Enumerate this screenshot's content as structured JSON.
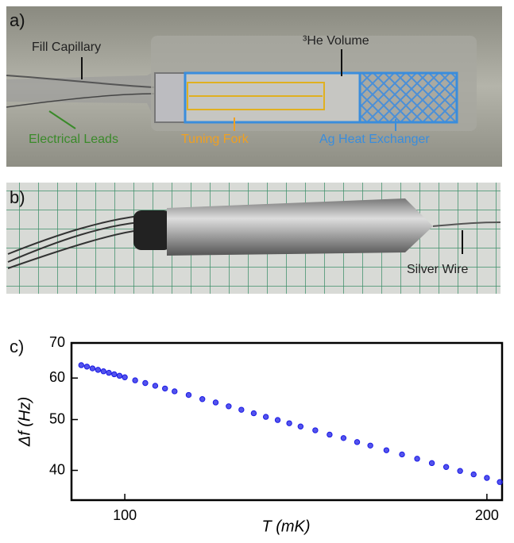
{
  "panels": [
    {
      "label": "a)",
      "annotations": [
        "Fill Capillary",
        "³He Volume",
        "Electrical Leads",
        "Tuning Fork",
        "Ag Heat Exchanger"
      ]
    },
    {
      "label": "b)",
      "annotations": [
        "Silver Wire"
      ]
    },
    {
      "label": "c)"
    }
  ],
  "chart_data": {
    "type": "scatter",
    "xlabel": "T (mK)",
    "ylabel": "Δf (Hz)",
    "x": [
      92,
      93,
      94,
      95,
      96,
      97,
      98,
      99,
      100,
      102,
      104,
      106,
      108,
      110,
      113,
      116,
      119,
      122,
      125,
      128,
      131,
      134,
      137,
      140,
      144,
      148,
      152,
      156,
      160,
      165,
      170,
      175,
      180,
      185,
      190,
      195,
      200,
      205
    ],
    "values": [
      63.5,
      63.1,
      62.6,
      62.2,
      61.8,
      61.4,
      61.0,
      60.6,
      60.2,
      59.4,
      58.7,
      58.0,
      57.3,
      56.6,
      55.7,
      54.7,
      53.9,
      53.0,
      52.2,
      51.4,
      50.6,
      49.9,
      49.2,
      48.5,
      47.7,
      46.8,
      46.1,
      45.3,
      44.6,
      43.7,
      42.9,
      42.1,
      41.3,
      40.6,
      39.9,
      39.3,
      38.7,
      38.0
    ],
    "color": "#1a1ae6",
    "xscale": "log",
    "yscale": "log",
    "xlim": [
      90.3,
      205.9
    ],
    "ylim": [
      35.1,
      70
    ],
    "xticks": [
      100,
      200
    ],
    "yticks": [
      40,
      50,
      60,
      70
    ]
  }
}
